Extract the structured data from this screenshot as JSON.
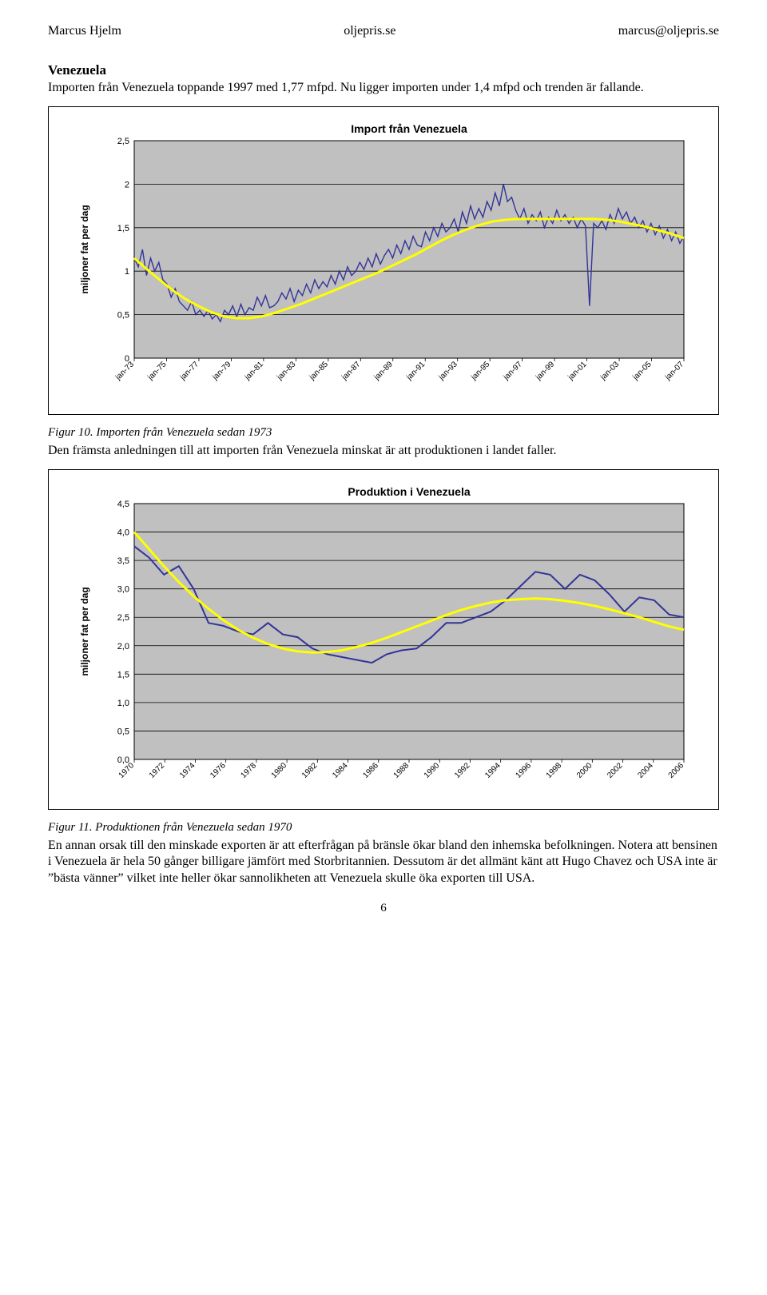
{
  "header": {
    "left": "Marcus Hjelm",
    "center": "oljepris.se",
    "right": "marcus@oljepris.se"
  },
  "section_title": "Venezuela",
  "intro_text": "Importen från Venezuela toppande 1997 med 1,77 mfpd. Nu ligger importen under 1,4 mfpd och trenden är fallande.",
  "chart1": {
    "type": "line",
    "title": "Import från Venezuela",
    "title_fontsize": 14,
    "title_fontweight": "bold",
    "ylabel": "miljoner fat per dag",
    "label_fontsize": 12,
    "label_fontweight": "bold",
    "background_color": "#c0c0c0",
    "grid_color": "#000000",
    "outer_bg": "#ffffff",
    "line_color": "#333399",
    "line_width": 1.4,
    "trend_color": "#ffff00",
    "trend_width": 3,
    "ylim": [
      0,
      2.5
    ],
    "ytick_step": 0.5,
    "yticks": [
      "0",
      "0,5",
      "1",
      "1,5",
      "2",
      "2,5"
    ],
    "xticks": [
      "jan-73",
      "jan-75",
      "jan-77",
      "jan-79",
      "jan-81",
      "jan-83",
      "jan-85",
      "jan-87",
      "jan-89",
      "jan-91",
      "jan-93",
      "jan-95",
      "jan-97",
      "jan-99",
      "jan-01",
      "jan-03",
      "jan-05",
      "jan-07"
    ],
    "values": [
      1.15,
      1.05,
      1.25,
      0.95,
      1.15,
      1.0,
      1.1,
      0.9,
      0.85,
      0.7,
      0.8,
      0.65,
      0.6,
      0.55,
      0.65,
      0.5,
      0.55,
      0.48,
      0.55,
      0.45,
      0.5,
      0.42,
      0.55,
      0.5,
      0.6,
      0.48,
      0.62,
      0.5,
      0.58,
      0.55,
      0.7,
      0.6,
      0.72,
      0.58,
      0.6,
      0.65,
      0.75,
      0.68,
      0.8,
      0.65,
      0.78,
      0.72,
      0.85,
      0.75,
      0.9,
      0.8,
      0.88,
      0.82,
      0.95,
      0.85,
      1.0,
      0.9,
      1.05,
      0.95,
      1.0,
      1.1,
      1.02,
      1.15,
      1.05,
      1.2,
      1.08,
      1.18,
      1.25,
      1.15,
      1.3,
      1.2,
      1.35,
      1.25,
      1.4,
      1.3,
      1.28,
      1.45,
      1.35,
      1.5,
      1.4,
      1.55,
      1.45,
      1.5,
      1.6,
      1.45,
      1.68,
      1.55,
      1.75,
      1.6,
      1.72,
      1.62,
      1.8,
      1.7,
      1.9,
      1.75,
      2.0,
      1.8,
      1.85,
      1.7,
      1.6,
      1.72,
      1.55,
      1.65,
      1.58,
      1.68,
      1.5,
      1.62,
      1.55,
      1.7,
      1.58,
      1.65,
      1.55,
      1.62,
      1.5,
      1.6,
      1.52,
      0.6,
      1.55,
      1.5,
      1.58,
      1.48,
      1.65,
      1.55,
      1.72,
      1.6,
      1.68,
      1.55,
      1.62,
      1.5,
      1.58,
      1.45,
      1.55,
      1.42,
      1.52,
      1.38,
      1.48,
      1.35,
      1.45,
      1.32,
      1.4
    ],
    "trend": [
      1.15,
      1.02,
      0.9,
      0.78,
      0.68,
      0.6,
      0.53,
      0.48,
      0.46,
      0.46,
      0.48,
      0.52,
      0.57,
      0.62,
      0.68,
      0.74,
      0.8,
      0.86,
      0.92,
      0.98,
      1.05,
      1.12,
      1.19,
      1.27,
      1.35,
      1.42,
      1.48,
      1.53,
      1.57,
      1.59,
      1.6,
      1.6,
      1.6,
      1.6,
      1.6,
      1.6,
      1.6,
      1.59,
      1.57,
      1.54,
      1.51,
      1.47,
      1.43,
      1.38
    ]
  },
  "fig10_caption": "Figur 10. Importen från Venezuela sedan 1973",
  "mid_text": "Den främsta anledningen till att importen från Venezuela minskat är att produktionen i landet faller.",
  "chart2": {
    "type": "line",
    "title": "Produktion i Venezuela",
    "title_fontsize": 14,
    "title_fontweight": "bold",
    "ylabel": "miljoner fat per dag",
    "label_fontsize": 12,
    "label_fontweight": "bold",
    "background_color": "#c0c0c0",
    "grid_color": "#000000",
    "outer_bg": "#ffffff",
    "line_color": "#333399",
    "line_width": 2,
    "trend_color": "#ffff00",
    "trend_width": 3,
    "ylim": [
      0,
      4.5
    ],
    "ytick_step": 0.5,
    "yticks": [
      "0,0",
      "0,5",
      "1,0",
      "1,5",
      "2,0",
      "2,5",
      "3,0",
      "3,5",
      "4,0",
      "4,5"
    ],
    "xticks": [
      "1970",
      "1972",
      "1974",
      "1976",
      "1978",
      "1980",
      "1982",
      "1984",
      "1986",
      "1988",
      "1990",
      "1992",
      "1994",
      "1996",
      "1998",
      "2000",
      "2002",
      "2004",
      "2006"
    ],
    "values": [
      3.75,
      3.55,
      3.25,
      3.4,
      3.0,
      2.4,
      2.35,
      2.25,
      2.2,
      2.4,
      2.2,
      2.15,
      1.95,
      1.85,
      1.8,
      1.75,
      1.7,
      1.85,
      1.92,
      1.95,
      2.15,
      2.4,
      2.4,
      2.5,
      2.6,
      2.8,
      3.05,
      3.3,
      3.25,
      3.0,
      3.25,
      3.15,
      2.9,
      2.6,
      2.85,
      2.8,
      2.55,
      2.5
    ],
    "trend": [
      4.0,
      3.7,
      3.4,
      3.12,
      2.87,
      2.65,
      2.45,
      2.28,
      2.14,
      2.03,
      1.95,
      1.9,
      1.88,
      1.89,
      1.92,
      1.98,
      2.05,
      2.14,
      2.24,
      2.34,
      2.44,
      2.54,
      2.63,
      2.7,
      2.76,
      2.8,
      2.82,
      2.83,
      2.82,
      2.79,
      2.75,
      2.7,
      2.64,
      2.57,
      2.5,
      2.42,
      2.34,
      2.28
    ]
  },
  "fig11_caption": "Figur 11. Produktionen från Venezuela sedan 1970",
  "bottom_text": "En annan orsak till den minskade exporten är att efterfrågan på bränsle ökar bland den inhemska befolkningen. Notera att bensinen i Venezuela är hela 50 gånger billigare jämfört med Storbritannien. Dessutom är det allmänt känt att Hugo Chavez och USA inte är ”bästa vänner” vilket inte heller ökar sannolikheten att Venezuela skulle öka exporten till USA.",
  "page_number": "6"
}
